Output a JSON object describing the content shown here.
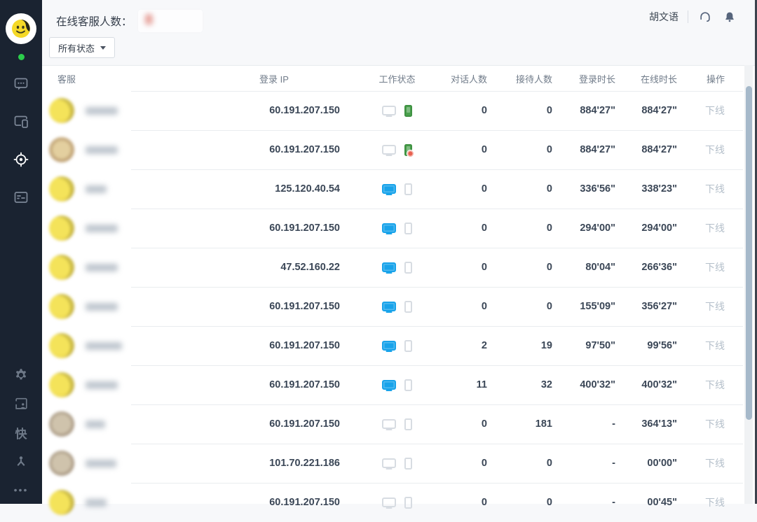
{
  "header": {
    "online_count_label": "在线客服人数：",
    "online_count_blurred": "8",
    "user_name": "胡文语"
  },
  "toolbar": {
    "status_filter_label": "所有状态"
  },
  "sidebar": {
    "top_icons": [
      {
        "name": "chat",
        "active": false
      },
      {
        "name": "devices",
        "active": false
      },
      {
        "name": "target",
        "active": true
      },
      {
        "name": "card-list",
        "active": false
      }
    ],
    "bottom_icons": [
      {
        "name": "gear"
      },
      {
        "name": "workspace-person"
      },
      {
        "name": "kuai",
        "label": "快"
      },
      {
        "name": "person-share"
      },
      {
        "name": "more-dots",
        "label": "•••"
      }
    ]
  },
  "table": {
    "columns": [
      "客服",
      "登录 IP",
      "工作状态",
      "对话人数",
      "接待人数",
      "登录时长",
      "在线时长",
      "操作"
    ],
    "rows": [
      {
        "avatar_tone": "yellow",
        "name_blur_width": 46,
        "ip": "60.191.207.150",
        "desktop_status": "offline",
        "mobile_status": "online",
        "mobile_badge": false,
        "chat_count": "0",
        "served_count": "0",
        "login_duration": "884'27\"",
        "online_duration": "884'27\"",
        "action": "下线"
      },
      {
        "avatar_tone": "tan",
        "name_blur_width": 46,
        "ip": "60.191.207.150",
        "desktop_status": "offline",
        "mobile_status": "online",
        "mobile_badge": true,
        "chat_count": "0",
        "served_count": "0",
        "login_duration": "884'27\"",
        "online_duration": "884'27\"",
        "action": "下线"
      },
      {
        "avatar_tone": "yellow",
        "name_blur_width": 30,
        "ip": "125.120.40.54",
        "desktop_status": "online",
        "mobile_status": "offline",
        "mobile_badge": false,
        "chat_count": "0",
        "served_count": "0",
        "login_duration": "336'56\"",
        "online_duration": "338'23\"",
        "action": "下线"
      },
      {
        "avatar_tone": "yellow",
        "name_blur_width": 46,
        "ip": "60.191.207.150",
        "desktop_status": "online",
        "mobile_status": "offline",
        "mobile_badge": false,
        "chat_count": "0",
        "served_count": "0",
        "login_duration": "294'00\"",
        "online_duration": "294'00\"",
        "action": "下线"
      },
      {
        "avatar_tone": "yellow",
        "name_blur_width": 46,
        "ip": "47.52.160.22",
        "desktop_status": "online",
        "mobile_status": "offline",
        "mobile_badge": false,
        "chat_count": "0",
        "served_count": "0",
        "login_duration": "80'04\"",
        "online_duration": "266'36\"",
        "action": "下线"
      },
      {
        "avatar_tone": "yellow",
        "name_blur_width": 46,
        "ip": "60.191.207.150",
        "desktop_status": "online",
        "mobile_status": "offline",
        "mobile_badge": false,
        "chat_count": "0",
        "served_count": "0",
        "login_duration": "155'09\"",
        "online_duration": "356'27\"",
        "action": "下线"
      },
      {
        "avatar_tone": "yellow",
        "name_blur_width": 52,
        "ip": "60.191.207.150",
        "desktop_status": "online",
        "mobile_status": "offline",
        "mobile_badge": false,
        "chat_count": "2",
        "served_count": "19",
        "login_duration": "97'50\"",
        "online_duration": "99'56\"",
        "action": "下线"
      },
      {
        "avatar_tone": "yellow",
        "name_blur_width": 46,
        "ip": "60.191.207.150",
        "desktop_status": "online",
        "mobile_status": "offline",
        "mobile_badge": false,
        "chat_count": "11",
        "served_count": "32",
        "login_duration": "400'32\"",
        "online_duration": "400'32\"",
        "action": "下线"
      },
      {
        "avatar_tone": "muted",
        "name_blur_width": 28,
        "ip": "60.191.207.150",
        "desktop_status": "offline",
        "mobile_status": "offline",
        "mobile_badge": false,
        "chat_count": "0",
        "served_count": "181",
        "login_duration": "-",
        "online_duration": "364'13\"",
        "action": "下线"
      },
      {
        "avatar_tone": "muted",
        "name_blur_width": 44,
        "ip": "101.70.221.186",
        "desktop_status": "offline",
        "mobile_status": "offline",
        "mobile_badge": false,
        "chat_count": "0",
        "served_count": "0",
        "login_duration": "-",
        "online_duration": "00'00\"",
        "action": "下线"
      },
      {
        "avatar_tone": "yellow",
        "name_blur_width": 30,
        "ip": "60.191.207.150",
        "desktop_status": "offline",
        "mobile_status": "offline",
        "mobile_badge": false,
        "chat_count": "0",
        "served_count": "0",
        "login_duration": "-",
        "online_duration": "00'45\"",
        "action": "下线"
      }
    ]
  },
  "colors": {
    "sidebar_bg": "#1a2331",
    "accent_blue": "#18a3ea",
    "status_green": "#4aa04d",
    "badge_red": "#e8604f",
    "online_dot": "#2bcd4b",
    "topbar_bg": "#f7f8fa"
  }
}
